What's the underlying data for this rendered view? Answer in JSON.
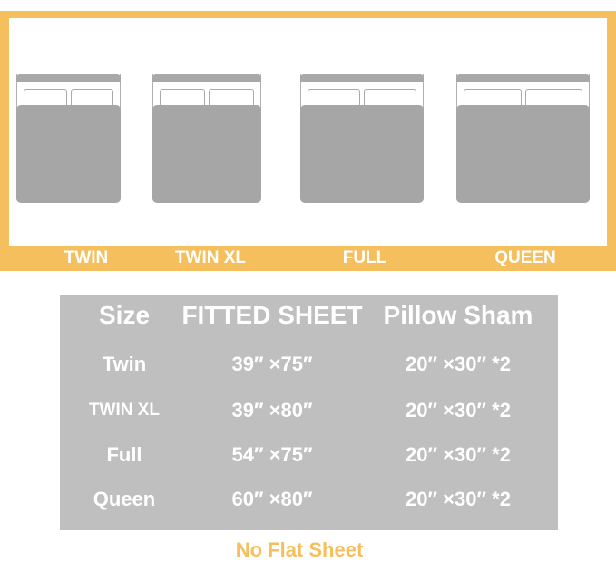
{
  "beds": [
    {
      "label": "TWIN"
    },
    {
      "label": "TWIN XL"
    },
    {
      "label": "FULL"
    },
    {
      "label": "QUEEN"
    }
  ],
  "table": {
    "headers": [
      "Size",
      "FITTED SHEET",
      "Pillow Sham"
    ],
    "rows": [
      [
        "Twin",
        "39″ ×75″",
        "20″ ×30″ *2"
      ],
      [
        "TWIN XL",
        "39″ ×80″",
        "20″ ×30″ *2"
      ],
      [
        "Full",
        "54″ ×75″",
        "20″ ×30″ *2"
      ],
      [
        "Queen",
        "60″ ×80″",
        "20″ ×30″ *2"
      ]
    ]
  },
  "note": "No Flat Sheet",
  "colors": {
    "accent": "#f6bf5d",
    "table_bg": "#bfbfbf",
    "bed_gray": "#a6a6a6"
  }
}
